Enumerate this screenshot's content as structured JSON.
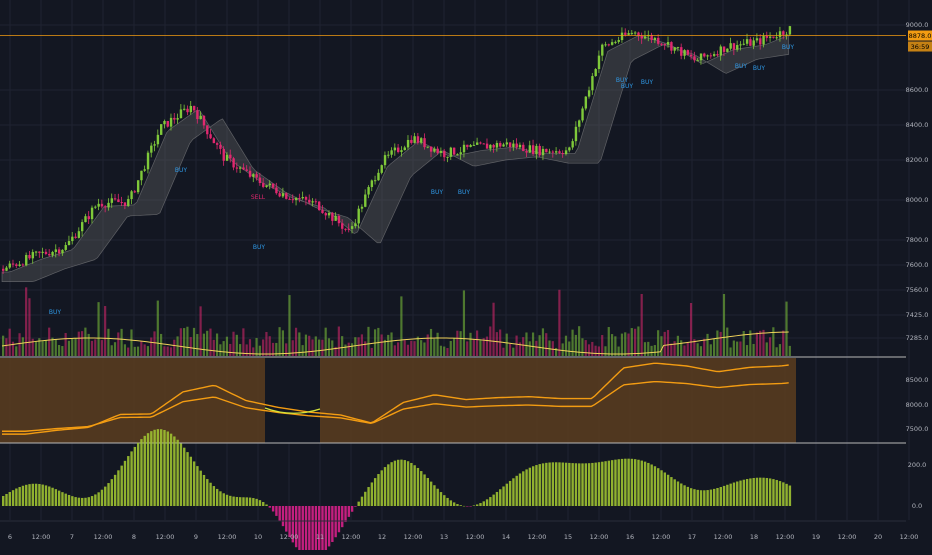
{
  "colors": {
    "background": "#131722",
    "grid": "#1f2331",
    "bull": "#7fc93a",
    "bear": "#e0286f",
    "axis_text": "#b2b5be",
    "signal_buy": "#2f9ae8",
    "signal_sell": "#e0286f",
    "price_line": "#f39c12",
    "ma_fill": "#6b6b6b",
    "volume_ma": "#f0d25a",
    "bands_fill": "#5c3d1e",
    "bands_line": "#f39c12",
    "osc_pos": "#9fc231",
    "osc_neg": "#d8208a"
  },
  "price_axis": {
    "ticks": [
      "9000.0",
      "8600.0",
      "8400.0",
      "8200.0",
      "8000.0",
      "7800.0",
      "7600.0",
      "7560.0",
      "7425.0",
      "7285.0"
    ],
    "last_price_label": "8878.0",
    "last_time_label": "36:59"
  },
  "bands_axis": {
    "ticks": [
      "8500.0",
      "8000.0",
      "7500.0"
    ]
  },
  "osc_axis": {
    "ticks": [
      "200.0",
      "0.0"
    ]
  },
  "time_axis": {
    "labels": [
      "6",
      "12:00",
      "7",
      "12:00",
      "8",
      "12:00",
      "9",
      "12:00",
      "10",
      "12:00",
      "11",
      "12:00",
      "12",
      "12:00",
      "13",
      "12:00",
      "14",
      "12:00",
      "15",
      "12:00",
      "16",
      "12:00",
      "17",
      "12:00",
      "18",
      "12:00",
      "19",
      "12:00",
      "20",
      "12:00"
    ]
  },
  "signals": [
    {
      "text": "BUY",
      "type": "buy"
    },
    {
      "text": "BUY",
      "type": "buy"
    },
    {
      "text": "SELL",
      "type": "sell"
    },
    {
      "text": "BUY",
      "type": "buy"
    },
    {
      "text": "BUY",
      "type": "buy"
    },
    {
      "text": "BUY",
      "type": "buy"
    },
    {
      "text": "BUY",
      "type": "buy"
    },
    {
      "text": "BUY",
      "type": "buy"
    },
    {
      "text": "BUY",
      "type": "buy"
    },
    {
      "text": "BUY",
      "type": "buy"
    },
    {
      "text": "BUY",
      "type": "buy"
    },
    {
      "text": "BUY",
      "type": "buy"
    }
  ],
  "chart_data": {
    "type": "line",
    "title": "",
    "x": [
      "6",
      "12:00",
      "7",
      "12:00",
      "8",
      "12:00",
      "9",
      "12:00",
      "10",
      "12:00",
      "11",
      "12:00",
      "12",
      "12:00",
      "13",
      "12:00",
      "14",
      "12:00",
      "15",
      "12:00",
      "16",
      "12:00",
      "17",
      "12:00",
      "18",
      "12:00"
    ],
    "series": [
      {
        "values": [
          7420,
          7500,
          7560,
          7830,
          7840,
          8300,
          8440,
          8120,
          7980,
          7880,
          7820,
          7650,
          8080,
          8240,
          8140,
          8180,
          8200,
          8160,
          8160,
          8800,
          8900,
          8840,
          8720,
          8810,
          8840,
          8920
        ]
      }
    ],
    "ylim": [
      7250,
      9050
    ],
    "grid": true,
    "price_line": 8878
  }
}
